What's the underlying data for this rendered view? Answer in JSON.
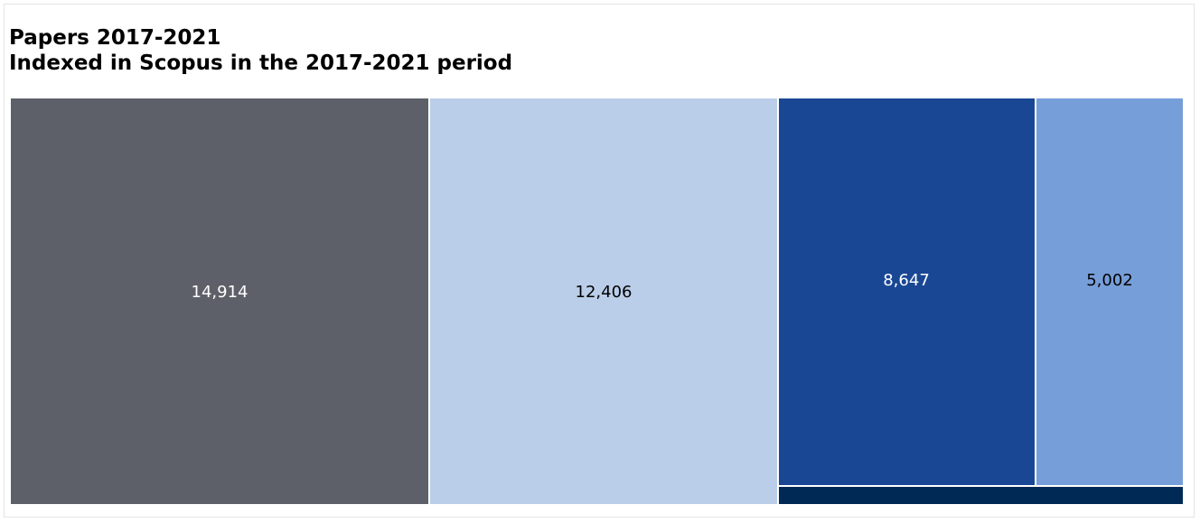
{
  "chart_data": {
    "type": "treemap",
    "title": "Papers 2017-2021",
    "subtitle": "Indexed in Scopus in the 2017-2021 period",
    "tiles": [
      {
        "value": 14914,
        "label": "14,914",
        "color": "#5d6068",
        "text_color": "#ffffff"
      },
      {
        "value": 12406,
        "label": "12,406",
        "color": "#bacee9",
        "text_color": "#000000"
      },
      {
        "value": 8647,
        "label": "8,647",
        "color": "#194794",
        "text_color": "#ffffff"
      },
      {
        "value": 5002,
        "label": "5,002",
        "color": "#769ed9",
        "text_color": "#000000"
      },
      {
        "value": null,
        "label": "",
        "color": "#012955",
        "text_color": "#ffffff"
      }
    ]
  }
}
